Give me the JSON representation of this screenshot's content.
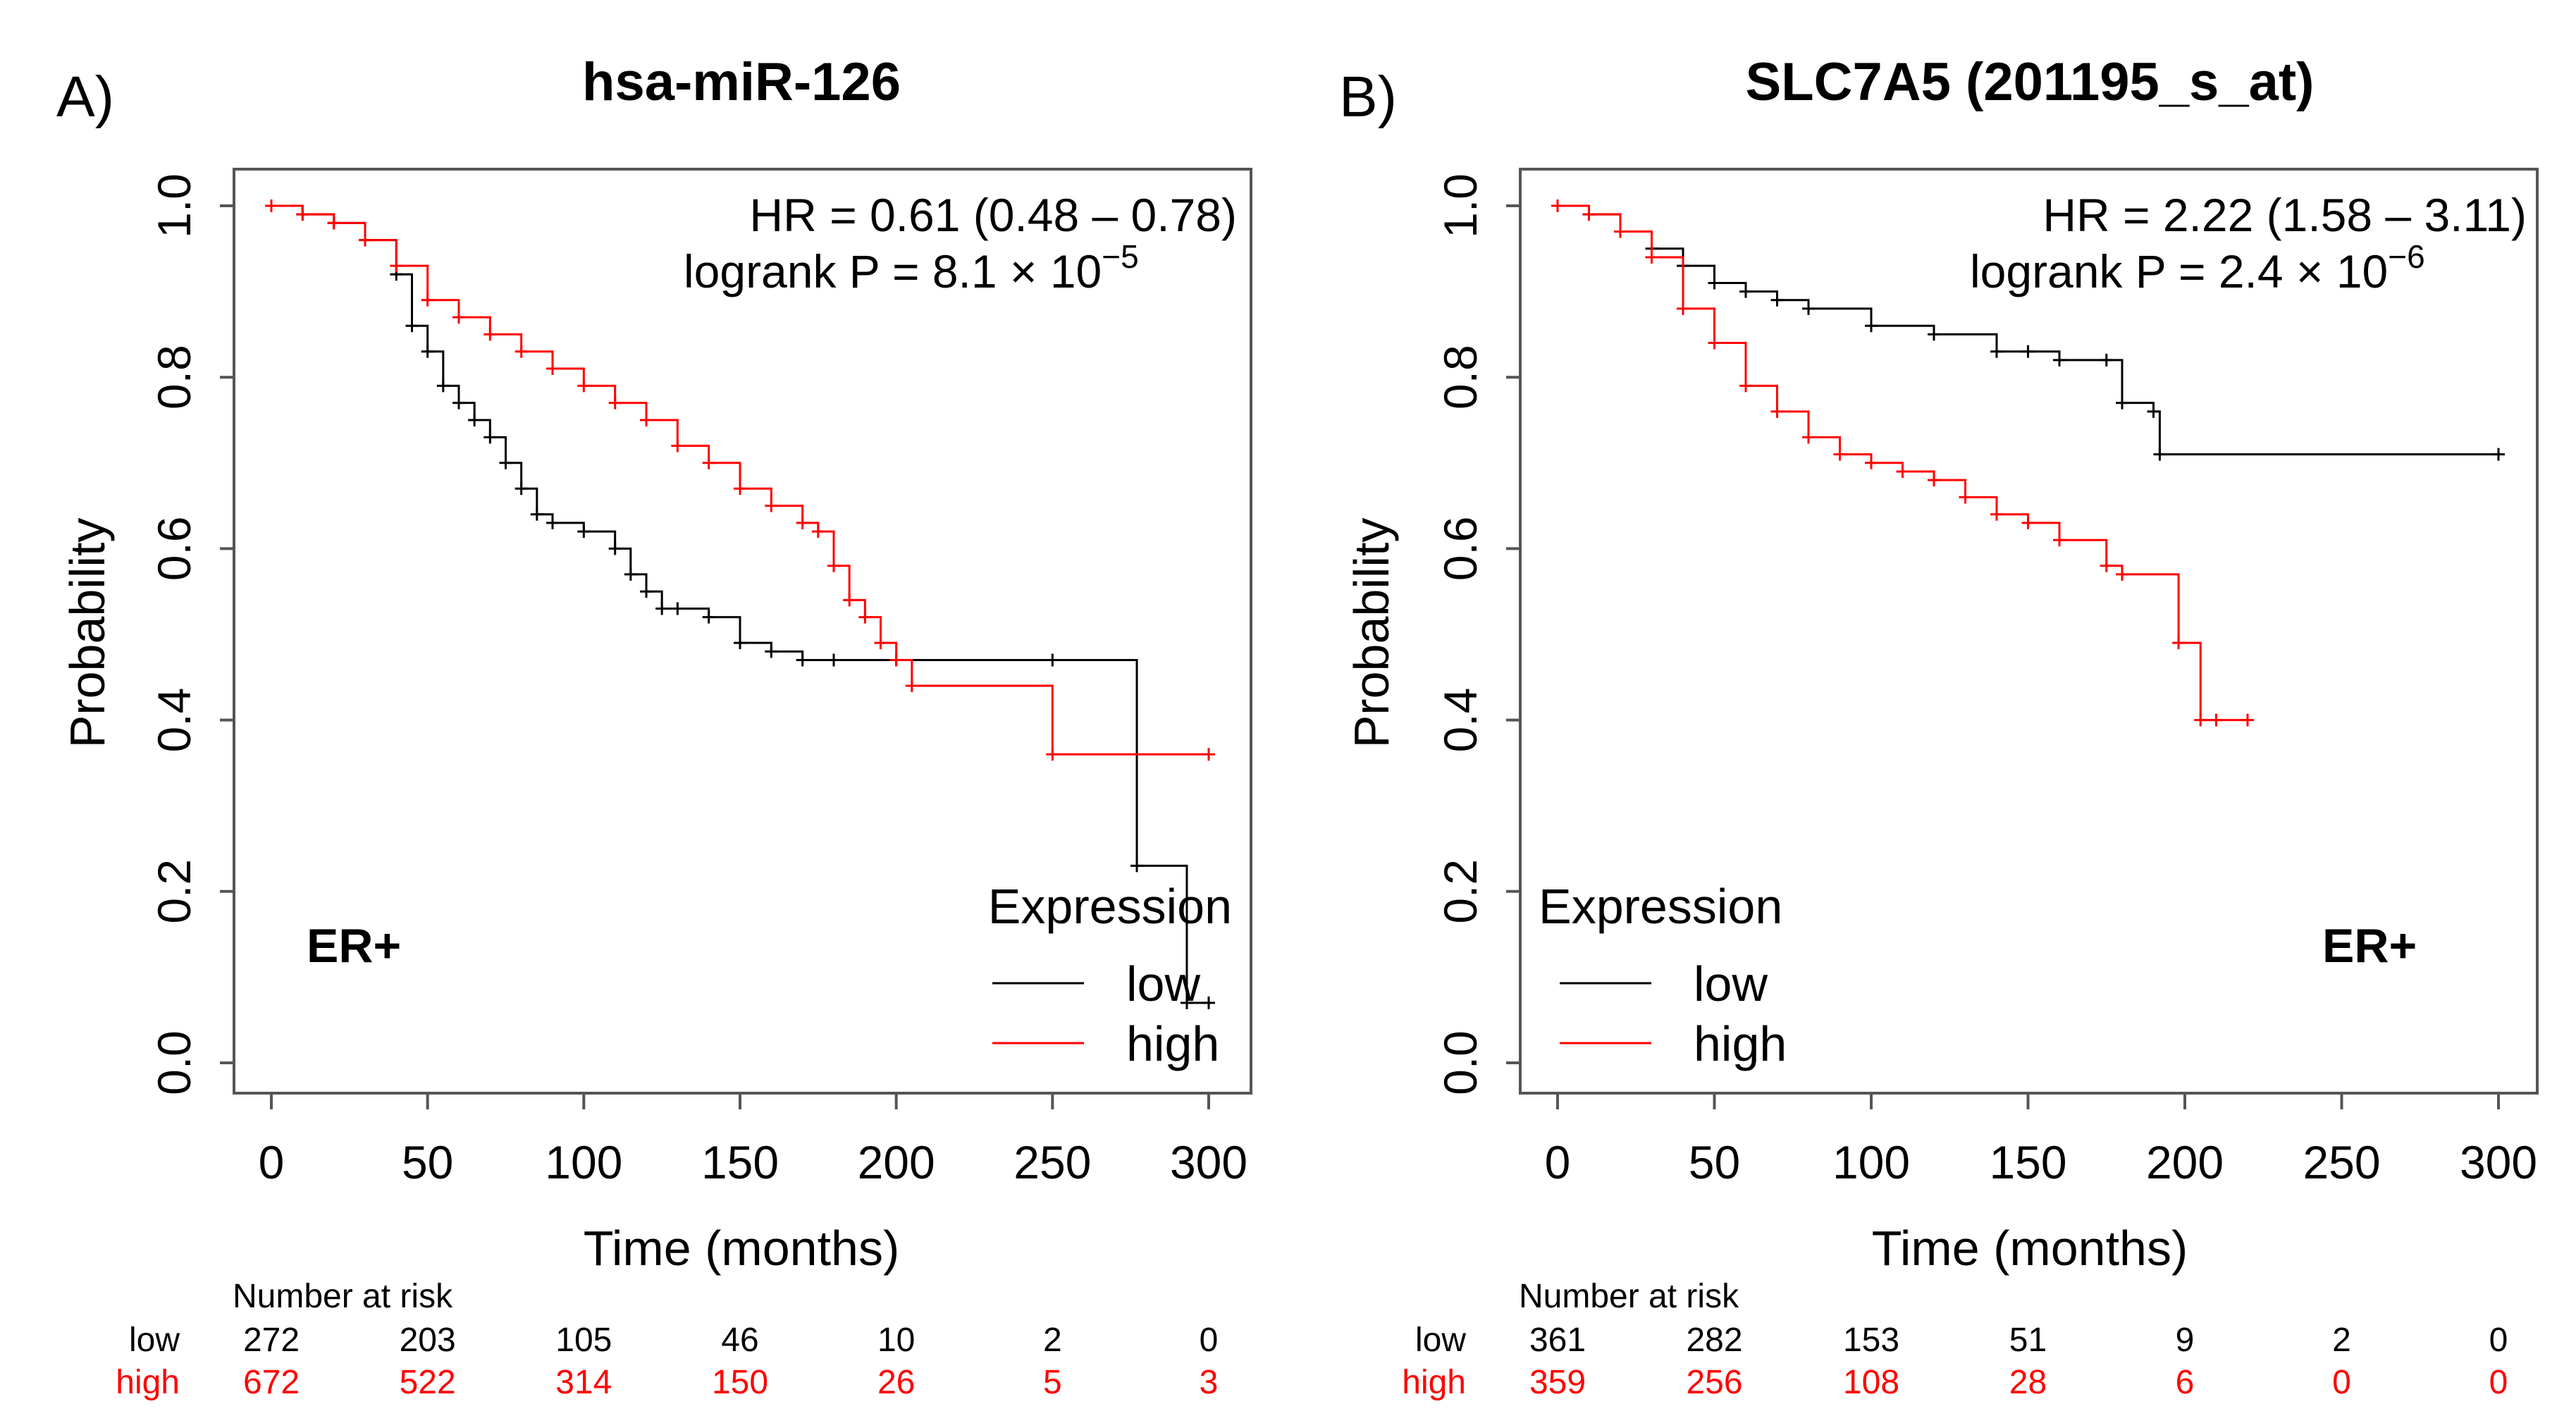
{
  "colors": {
    "low": "#000000",
    "high": "#ff0000",
    "axis": "#555555"
  },
  "chart_data": [
    {
      "type": "line",
      "panel_label": "A)",
      "title": "hsa-miR-126",
      "xlabel": "Time (months)",
      "ylabel": "Probability",
      "xlim": [
        0,
        300
      ],
      "ylim": [
        0,
        1
      ],
      "x_ticks": [
        "0",
        "50",
        "100",
        "150",
        "200",
        "250",
        "300"
      ],
      "y_ticks": [
        "0.0",
        "0.2",
        "0.4",
        "0.6",
        "0.8",
        "1.0"
      ],
      "annotation": {
        "hr_line": "HR = 0.61 (0.48 – 0.78)",
        "p_prefix": "logrank P = 8.1 × 10",
        "p_exp": "−5"
      },
      "er_label": "ER+",
      "legend": {
        "title": "Expression",
        "position": "bottom-right",
        "entries": [
          "low",
          "high"
        ]
      },
      "series": [
        {
          "name": "low",
          "x": [
            0,
            10,
            20,
            30,
            40,
            45,
            50,
            55,
            60,
            65,
            70,
            75,
            80,
            85,
            90,
            100,
            110,
            115,
            120,
            125,
            130,
            140,
            150,
            160,
            170,
            180,
            200,
            250,
            277,
            293,
            300
          ],
          "y": [
            1.0,
            0.99,
            0.98,
            0.96,
            0.92,
            0.86,
            0.83,
            0.79,
            0.77,
            0.75,
            0.73,
            0.7,
            0.67,
            0.64,
            0.63,
            0.62,
            0.6,
            0.57,
            0.55,
            0.53,
            0.53,
            0.52,
            0.49,
            0.48,
            0.47,
            0.47,
            0.47,
            0.47,
            0.23,
            0.07,
            0.07
          ]
        },
        {
          "name": "high",
          "x": [
            0,
            10,
            20,
            30,
            40,
            50,
            60,
            70,
            80,
            90,
            100,
            110,
            120,
            130,
            140,
            150,
            160,
            170,
            175,
            180,
            185,
            190,
            195,
            200,
            205,
            250,
            300
          ],
          "y": [
            1.0,
            0.99,
            0.98,
            0.96,
            0.93,
            0.89,
            0.87,
            0.85,
            0.83,
            0.81,
            0.79,
            0.77,
            0.75,
            0.72,
            0.7,
            0.67,
            0.65,
            0.63,
            0.62,
            0.58,
            0.54,
            0.52,
            0.49,
            0.47,
            0.44,
            0.36,
            0.36
          ]
        }
      ],
      "number_at_risk": {
        "label": "Number at risk",
        "times": [
          0,
          50,
          100,
          150,
          200,
          250,
          300
        ],
        "low": [
          "272",
          "203",
          "105",
          "46",
          "10",
          "2",
          "0"
        ],
        "high": [
          "672",
          "522",
          "314",
          "150",
          "26",
          "5",
          "3"
        ]
      }
    },
    {
      "type": "line",
      "panel_label": "B)",
      "title": "SLC7A5 (201195_s_at)",
      "xlabel": "Time (months)",
      "ylabel": "Probability",
      "xlim": [
        0,
        300
      ],
      "ylim": [
        0,
        1
      ],
      "x_ticks": [
        "0",
        "50",
        "100",
        "150",
        "200",
        "250",
        "300"
      ],
      "y_ticks": [
        "0.0",
        "0.2",
        "0.4",
        "0.6",
        "0.8",
        "1.0"
      ],
      "annotation": {
        "hr_line": "HR = 2.22 (1.58 – 3.11)",
        "p_prefix": "logrank P = 2.4 × 10",
        "p_exp": "−6"
      },
      "er_label": "ER+",
      "legend": {
        "title": "Expression",
        "position": "bottom-left",
        "entries": [
          "low",
          "high"
        ]
      },
      "series": [
        {
          "name": "low",
          "x": [
            0,
            10,
            20,
            30,
            40,
            50,
            60,
            70,
            80,
            100,
            120,
            140,
            150,
            160,
            175,
            180,
            190,
            192,
            300
          ],
          "y": [
            1.0,
            0.99,
            0.97,
            0.95,
            0.93,
            0.91,
            0.9,
            0.89,
            0.88,
            0.86,
            0.85,
            0.83,
            0.83,
            0.82,
            0.82,
            0.77,
            0.76,
            0.71,
            0.71
          ]
        },
        {
          "name": "high",
          "x": [
            0,
            10,
            20,
            30,
            40,
            50,
            60,
            70,
            80,
            90,
            100,
            110,
            120,
            130,
            140,
            150,
            160,
            175,
            180,
            198,
            205,
            210,
            220
          ],
          "y": [
            1.0,
            0.99,
            0.97,
            0.94,
            0.88,
            0.84,
            0.79,
            0.76,
            0.73,
            0.71,
            0.7,
            0.69,
            0.68,
            0.66,
            0.64,
            0.63,
            0.61,
            0.58,
            0.57,
            0.49,
            0.4,
            0.4,
            0.4
          ]
        }
      ],
      "number_at_risk": {
        "label": "Number at risk",
        "times": [
          0,
          50,
          100,
          150,
          200,
          250,
          300
        ],
        "low": [
          "361",
          "282",
          "153",
          "51",
          "9",
          "2",
          "0"
        ],
        "high": [
          "359",
          "256",
          "108",
          "28",
          "6",
          "0",
          "0"
        ]
      }
    }
  ]
}
